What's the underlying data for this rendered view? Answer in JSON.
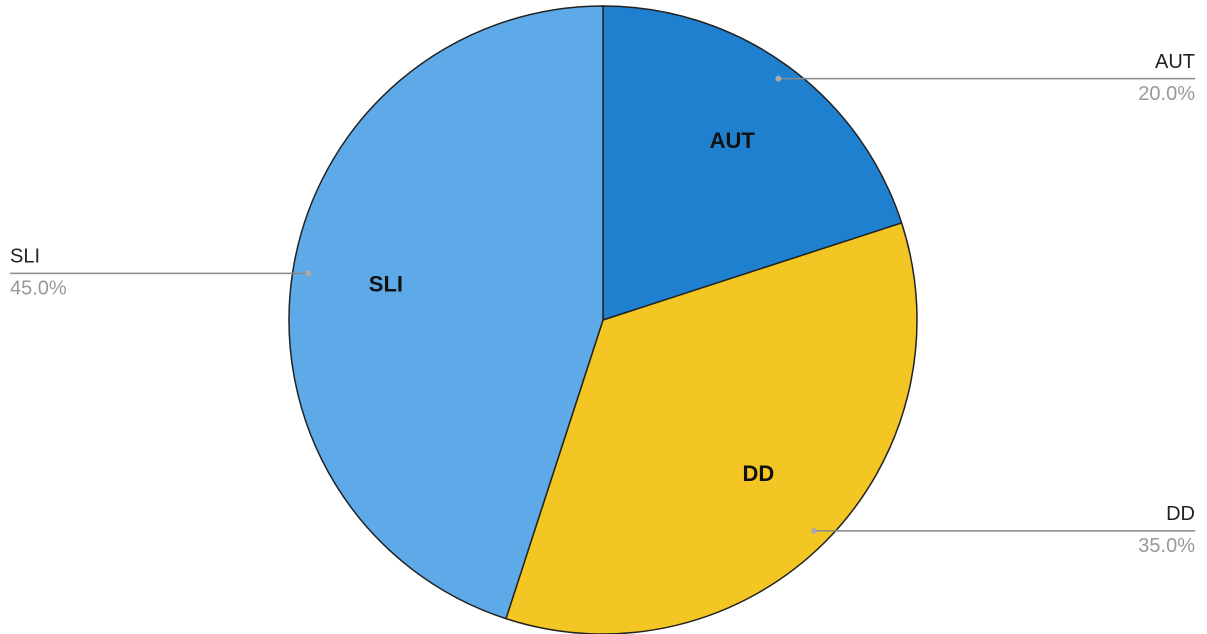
{
  "chart_data": {
    "type": "pie",
    "categories": [
      "AUT",
      "DD",
      "SLI"
    ],
    "values": [
      20,
      35,
      45
    ],
    "value_labels": [
      "20.0%",
      "35.0%",
      "45.0%"
    ],
    "colors": [
      "#1f80d0",
      "#f3c623",
      "#5eaae8"
    ]
  }
}
